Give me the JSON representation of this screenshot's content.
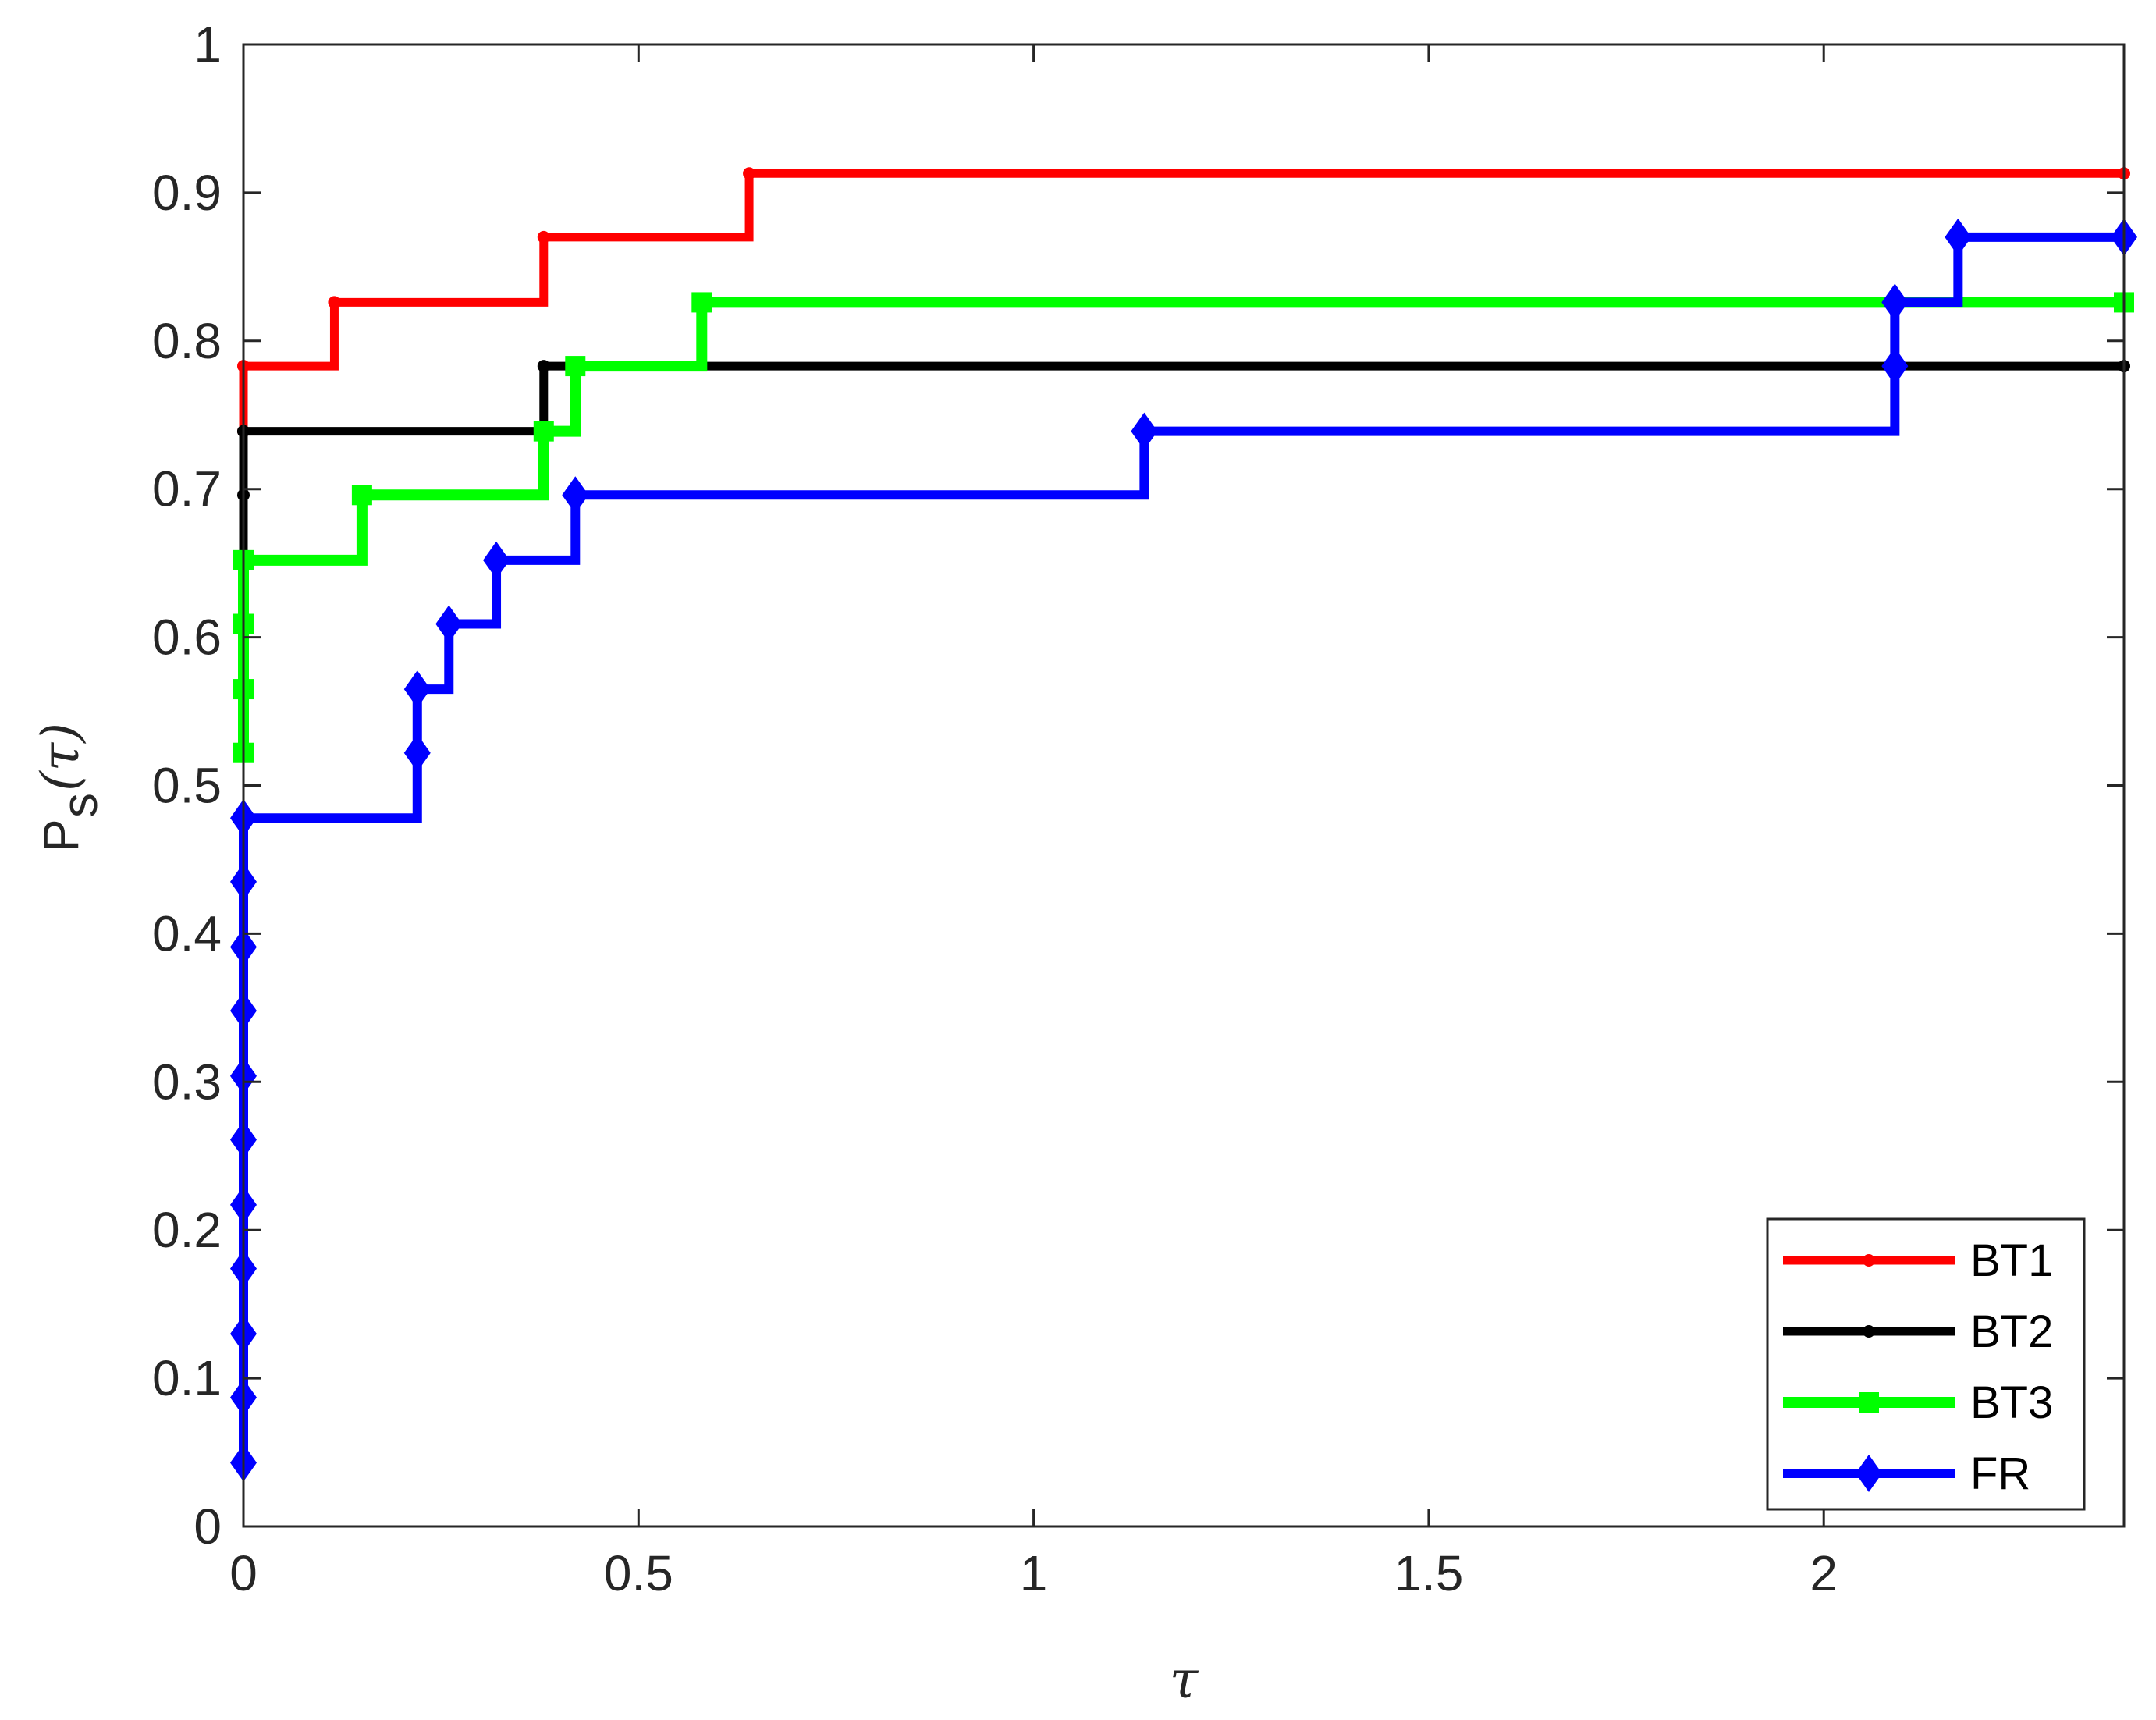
{
  "chart_data": {
    "type": "line",
    "title": "",
    "xlabel": "τ",
    "ylabel": {
      "main": "P",
      "subscript": "s",
      "arg": "(τ)"
    },
    "xlim": [
      0,
      2.38
    ],
    "ylim": [
      0,
      1
    ],
    "xticks": [
      {
        "value": 0,
        "label": "0"
      },
      {
        "value": 0.5,
        "label": "0.5"
      },
      {
        "value": 1,
        "label": "1"
      },
      {
        "value": 1.5,
        "label": "1.5"
      },
      {
        "value": 2,
        "label": "2"
      }
    ],
    "yticks": [
      {
        "value": 0,
        "label": "0"
      },
      {
        "value": 0.1,
        "label": "0.1"
      },
      {
        "value": 0.2,
        "label": "0.2"
      },
      {
        "value": 0.3,
        "label": "0.3"
      },
      {
        "value": 0.4,
        "label": "0.4"
      },
      {
        "value": 0.5,
        "label": "0.5"
      },
      {
        "value": 0.6,
        "label": "0.6"
      },
      {
        "value": 0.7,
        "label": "0.7"
      },
      {
        "value": 0.8,
        "label": "0.8"
      },
      {
        "value": 0.9,
        "label": "0.9"
      },
      {
        "value": 1,
        "label": "1"
      }
    ],
    "grid": false,
    "legend_position": "bottom-right",
    "step_style": "stairs",
    "series": [
      {
        "name": "BT1",
        "color": "#ff0000",
        "marker": "dot",
        "x": [
          0,
          0,
          0.115,
          0.38,
          0.64,
          2.38
        ],
        "y": [
          0.739,
          0.783,
          0.826,
          0.87,
          0.913,
          0.913
        ]
      },
      {
        "name": "BT2",
        "color": "#000000",
        "marker": "dot",
        "x": [
          0,
          0,
          0,
          0,
          0.38,
          2.38
        ],
        "y": [
          0.652,
          0.696,
          0.739,
          0.739,
          0.783,
          0.783
        ]
      },
      {
        "name": "BT3",
        "color": "#00ff00",
        "marker": "square",
        "x": [
          0,
          0,
          0,
          0,
          0.15,
          0.38,
          0.42,
          0.58,
          2.38
        ],
        "y": [
          0.522,
          0.565,
          0.609,
          0.652,
          0.696,
          0.739,
          0.783,
          0.826,
          0.826
        ]
      },
      {
        "name": "FR",
        "color": "#0000ff",
        "marker": "diamond",
        "x": [
          0,
          0,
          0,
          0,
          0,
          0,
          0,
          0,
          0,
          0,
          0,
          0.22,
          0.22,
          0.26,
          0.32,
          0.42,
          1.14,
          2.09,
          2.09,
          2.17,
          2.38
        ],
        "y": [
          0.043,
          0.087,
          0.13,
          0.174,
          0.217,
          0.261,
          0.304,
          0.348,
          0.391,
          0.435,
          0.478,
          0.522,
          0.565,
          0.609,
          0.652,
          0.696,
          0.739,
          0.783,
          0.826,
          0.87,
          0.87
        ]
      }
    ]
  }
}
